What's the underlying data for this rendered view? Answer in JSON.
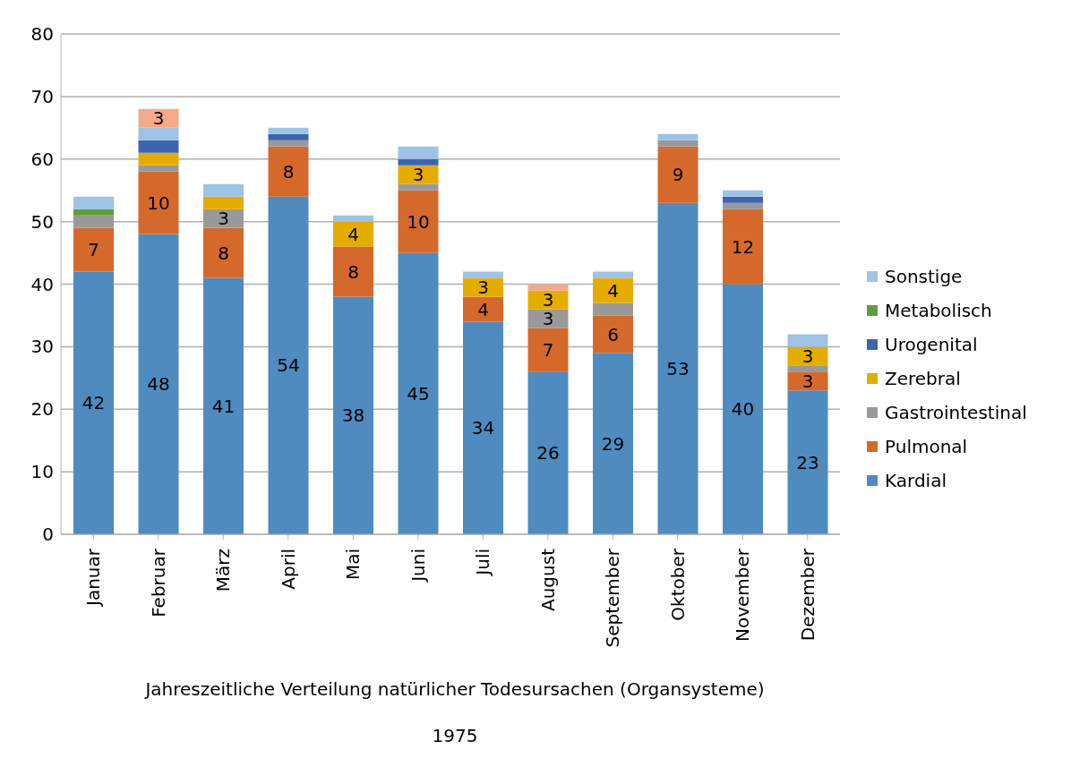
{
  "chart_data": {
    "type": "bar",
    "stacked": true,
    "grid": "y",
    "legend": "right",
    "xlabel": "Jahreszeitliche Verteilung natürlicher Todesursachen (Organsysteme)",
    "annotations": [
      "1975"
    ],
    "categories": [
      "Januar",
      "Februar",
      "März",
      "April",
      "Mai",
      "Juni",
      "Juli",
      "August",
      "September",
      "Oktober",
      "November",
      "Dezember"
    ],
    "ylim": [
      0,
      80
    ],
    "yticks": [
      0,
      10,
      20,
      30,
      40,
      50,
      60,
      70,
      80
    ],
    "series": [
      {
        "name": "Kardial",
        "color": "#4f8bbf",
        "values": [
          42,
          48,
          41,
          54,
          38,
          45,
          34,
          26,
          29,
          53,
          40,
          23
        ],
        "value_labels": [
          "42",
          "48",
          "41",
          "54",
          "38",
          "45",
          "34",
          "26",
          "29",
          "53",
          "40",
          "23"
        ]
      },
      {
        "name": "Pulmonal",
        "color": "#d5692b",
        "values": [
          7,
          10,
          8,
          8,
          8,
          10,
          4,
          7,
          6,
          9,
          12,
          3
        ],
        "value_labels": [
          "7",
          "10",
          "8",
          "8",
          "8",
          "10",
          "4",
          "7",
          "6",
          "9",
          "12",
          "3"
        ]
      },
      {
        "name": "Gastrointestinal",
        "color": "#999999",
        "values": [
          2,
          1,
          3,
          1,
          0,
          1,
          0,
          3,
          2,
          1,
          1,
          1
        ],
        "value_labels": [
          null,
          null,
          "3",
          null,
          null,
          null,
          null,
          "3",
          null,
          null,
          null,
          null
        ]
      },
      {
        "name": "Zerebral",
        "color": "#e5ac00",
        "values": [
          0,
          2,
          2,
          0,
          4,
          3,
          3,
          3,
          4,
          0,
          0,
          3
        ],
        "value_labels": [
          null,
          null,
          null,
          null,
          "4",
          "3",
          "3",
          "3",
          "4",
          null,
          null,
          "3"
        ]
      },
      {
        "name": "Urogenital",
        "color": "#3d65ae",
        "values": [
          0,
          2,
          0,
          1,
          0,
          1,
          0,
          0,
          0,
          0,
          1,
          0
        ]
      },
      {
        "name": "Metabolisch",
        "color": "#5f9d3b",
        "values": [
          1,
          0,
          0,
          0,
          0,
          0,
          0,
          0,
          0,
          0,
          0,
          0
        ]
      },
      {
        "name": "Sonstige",
        "color": "#9dc3e6",
        "values": [
          2,
          2,
          2,
          1,
          1,
          2,
          1,
          0,
          1,
          1,
          1,
          2
        ]
      },
      {
        "color": "#f4a98a",
        "values": [
          0,
          3,
          0,
          0,
          0,
          0,
          0,
          1,
          0,
          0,
          0,
          0
        ],
        "value_labels": [
          null,
          "3",
          null,
          null,
          null,
          null,
          null,
          null,
          null,
          null,
          null,
          null
        ]
      }
    ]
  }
}
